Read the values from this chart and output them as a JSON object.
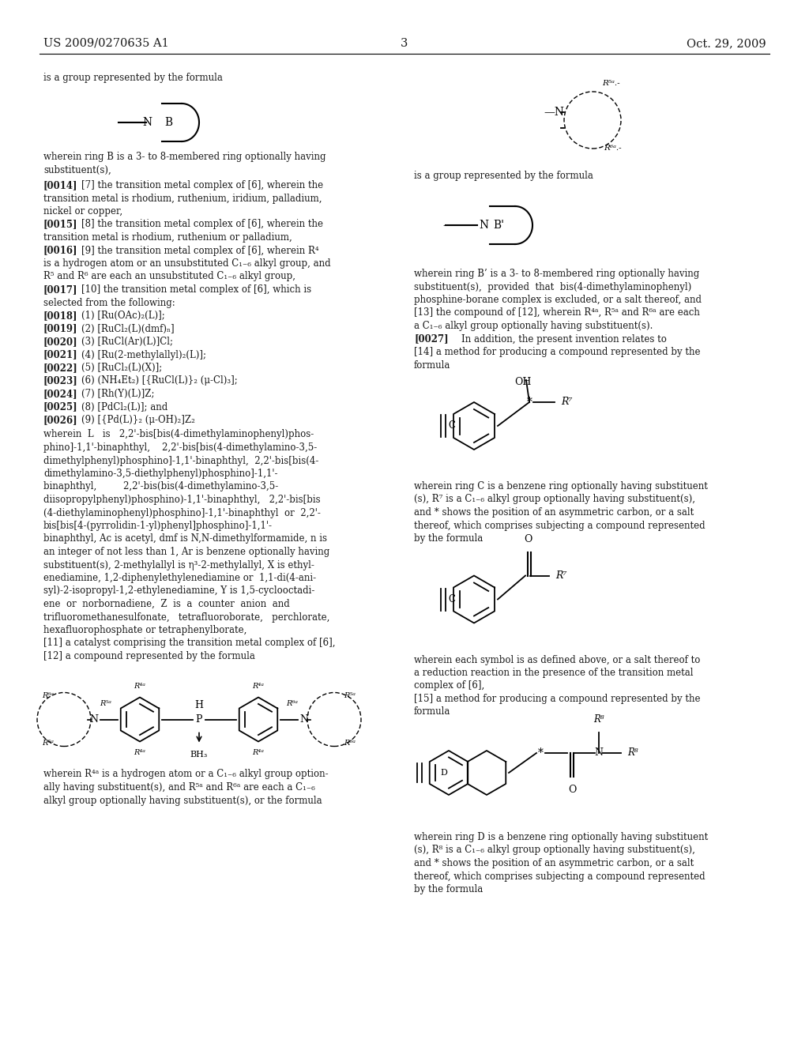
{
  "patent_number": "US 2009/0270635 A1",
  "date": "Oct. 29, 2009",
  "page_number": "3",
  "bg_color": "#ffffff",
  "text_color": "#1a1a1a",
  "font_size_body": 8.5,
  "font_size_header": 10.0
}
